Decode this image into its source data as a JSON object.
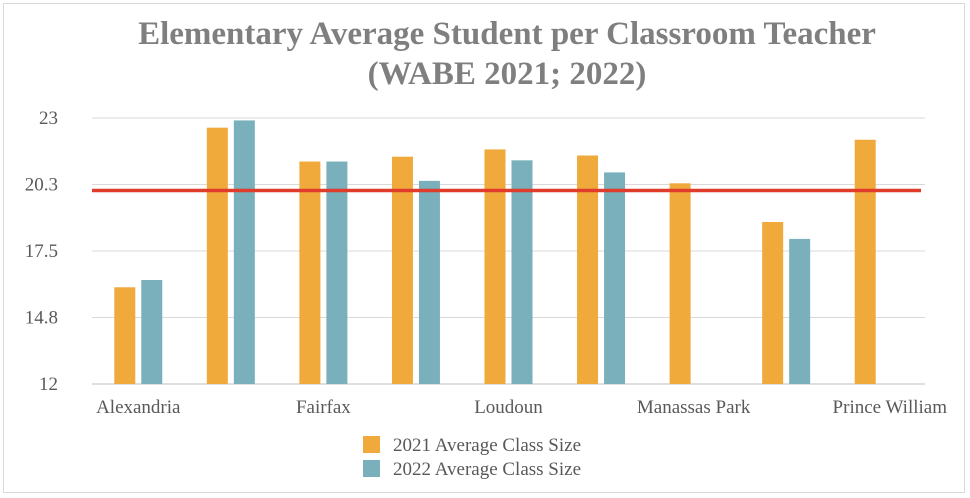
{
  "chart_data": {
    "type": "bar",
    "title": "Elementary Average Student per Classroom Teacher",
    "subtitle": "(WABE 2021; 2022)",
    "xlabel": "",
    "ylabel": "",
    "categories": [
      "Alexandria",
      "",
      "Fairfax",
      "",
      "Loudoun",
      "",
      "Manassas Park",
      "",
      "Prince William"
    ],
    "series": [
      {
        "name": "2021 Average Class Size",
        "color": "#f0a93b",
        "values": [
          16.0,
          22.6,
          21.2,
          21.4,
          21.7,
          21.45,
          20.3,
          18.7,
          22.1
        ]
      },
      {
        "name": "2022 Average Class Size",
        "color": "#79b0bb",
        "values": [
          16.3,
          22.9,
          21.2,
          20.4,
          21.25,
          20.75,
          null,
          18.0,
          null
        ]
      }
    ],
    "reference_line": {
      "value": 20.0,
      "color": "#e03c2c"
    },
    "ylim": [
      12,
      23
    ],
    "yticks": [
      "23",
      "20.3",
      "17.5",
      "14.8",
      "12"
    ],
    "ytick_values": [
      23,
      20.25,
      17.5,
      14.75,
      12
    ],
    "grid": true,
    "legend_position": "bottom"
  }
}
